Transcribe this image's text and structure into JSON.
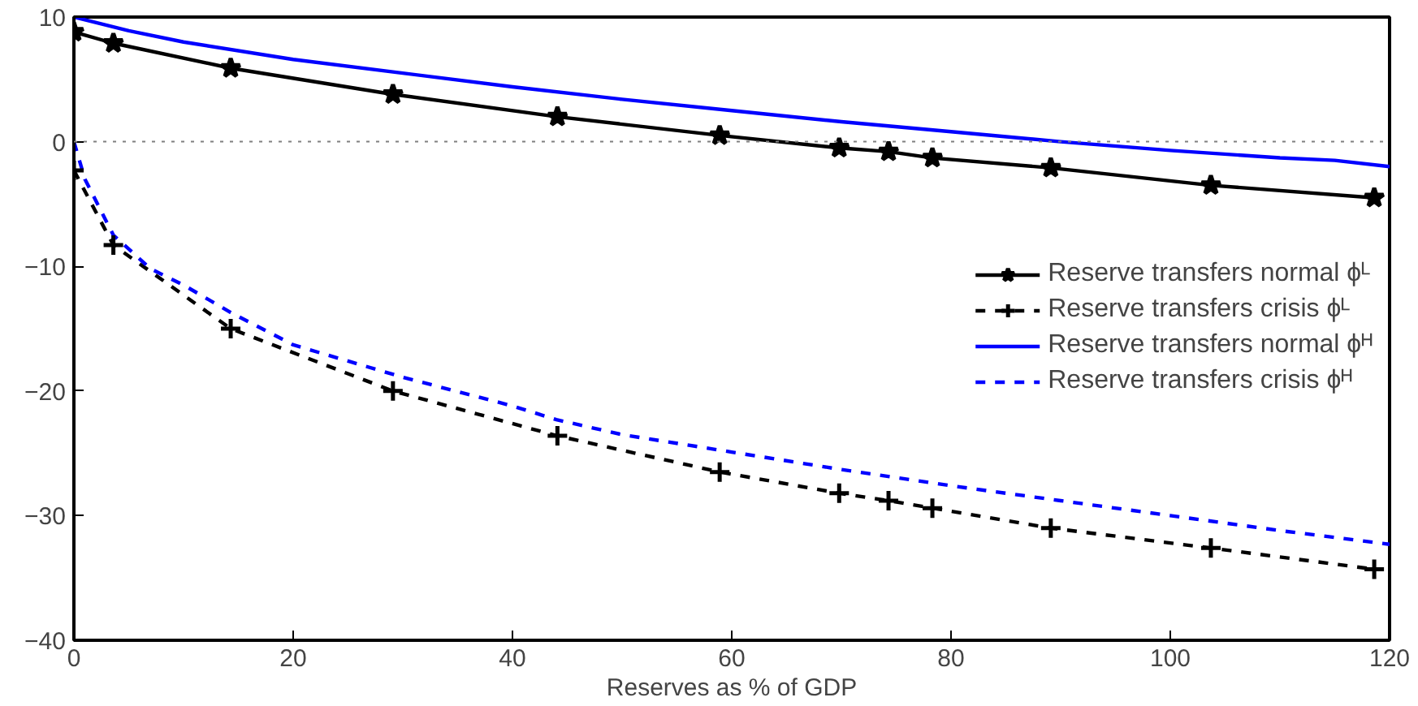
{
  "chart_data": {
    "type": "line",
    "xlabel": "Reserves as % of GDP",
    "xlim": [
      0,
      120
    ],
    "xticks": [
      0,
      20,
      40,
      60,
      80,
      100,
      120
    ],
    "ylim": [
      -40,
      10
    ],
    "yticks": [
      -40,
      -30,
      -20,
      -10,
      0,
      10
    ],
    "grid": false,
    "legend": "right",
    "ref_lines": [
      {
        "axis": "y",
        "value": 0,
        "color": "#808080",
        "line_style": "dotted"
      }
    ],
    "series": [
      {
        "name": "Reserve transfers normal ϕᴸ",
        "color": "#000000",
        "marker": "star",
        "line_style": "solid",
        "x": [
          0,
          3.6,
          14.3,
          29.1,
          44.1,
          58.9,
          69.8,
          74.3,
          78.3,
          89.1,
          103.7,
          118.6
        ],
        "values": [
          8.8,
          7.9,
          5.9,
          3.8,
          2.0,
          0.5,
          -0.5,
          -0.8,
          -1.3,
          -2.1,
          -3.5,
          -4.5
        ]
      },
      {
        "name": "Reserve transfers crisis ϕᴸ",
        "color": "#000000",
        "marker": "cross",
        "line_style": "dashed",
        "x": [
          0,
          3.6,
          14.3,
          29.1,
          44.1,
          58.9,
          69.8,
          74.3,
          78.3,
          89.1,
          103.7,
          118.6
        ],
        "values": [
          -2.3,
          -8.3,
          -15.0,
          -20.0,
          -23.6,
          -26.5,
          -28.2,
          -28.8,
          -29.4,
          -31.0,
          -32.6,
          -34.3
        ]
      },
      {
        "name": "Reserve transfers normal ϕᴴ",
        "color": "#0000ff",
        "marker": "none",
        "line_style": "solid",
        "x": [
          0,
          5,
          10,
          20,
          30,
          40,
          50,
          60,
          70,
          80,
          90,
          100,
          110,
          115,
          120
        ],
        "values": [
          10,
          8.9,
          8.0,
          6.6,
          5.5,
          4.4,
          3.4,
          2.5,
          1.6,
          0.8,
          0.0,
          -0.7,
          -1.3,
          -1.5,
          -2.0
        ]
      },
      {
        "name": "Reserve transfers crisis ϕᴴ",
        "color": "#0000ff",
        "marker": "none",
        "line_style": "dashed",
        "x": [
          0,
          1,
          3.6,
          7,
          10,
          14.3,
          20,
          30,
          40,
          44,
          50,
          60,
          70,
          80,
          90,
          100,
          110,
          120
        ],
        "values": [
          0,
          -3,
          -7.5,
          -10.2,
          -11.5,
          -13.7,
          -16.3,
          -18.9,
          -21.2,
          -22.3,
          -23.5,
          -24.9,
          -26.3,
          -27.6,
          -28.8,
          -30.0,
          -31.2,
          -32.3
        ]
      }
    ]
  }
}
